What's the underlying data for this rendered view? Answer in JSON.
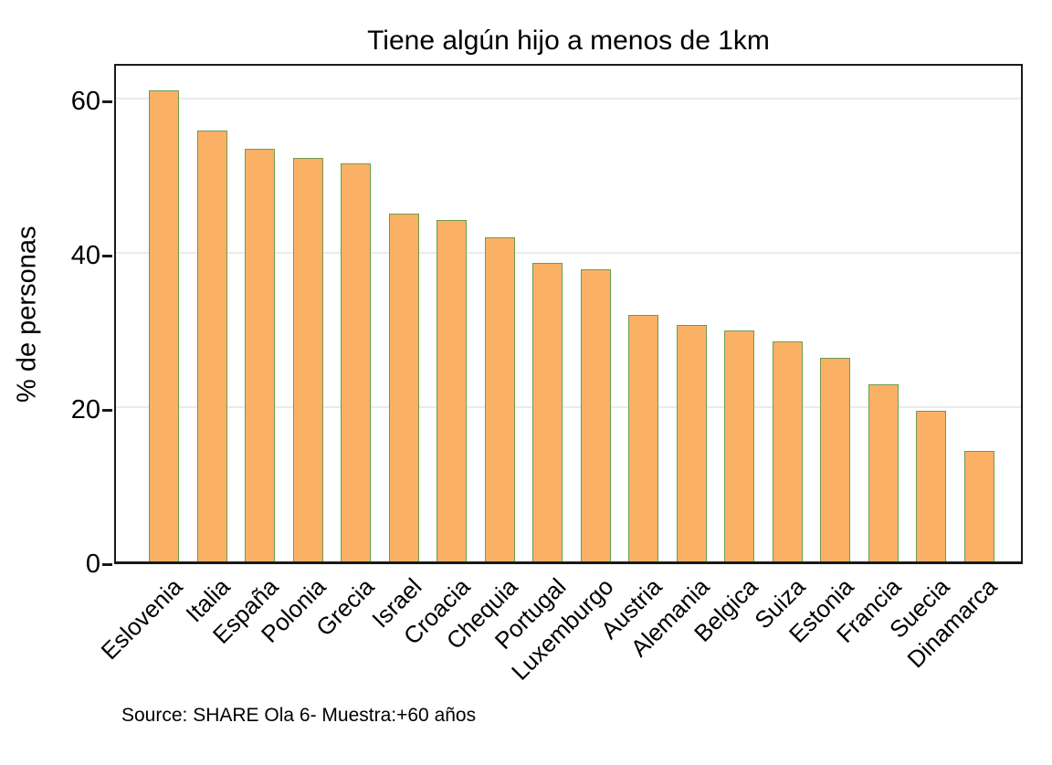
{
  "chart_data": {
    "type": "bar",
    "title": "Tiene algún hijo a menos de 1km",
    "ylabel": "% de personas",
    "xlabel": "",
    "source": "Source: SHARE Ola 6- Muestra:+60 años",
    "categories": [
      "Eslovenia",
      "Italia",
      "España",
      "Polonia",
      "Grecia",
      "Israel",
      "Croacia",
      "Chequia",
      "Portugal",
      "Luxemburgo",
      "Austria",
      "Alemania",
      "Belgica",
      "Suiza",
      "Estonia",
      "Francia",
      "Suecia",
      "Dinamarca"
    ],
    "values": [
      61.1,
      55.9,
      53.5,
      52.4,
      51.6,
      45.1,
      44.3,
      42.0,
      38.7,
      37.9,
      32.0,
      30.7,
      30.0,
      28.6,
      26.4,
      23.0,
      19.5,
      14.3
    ],
    "yticks": [
      0,
      20,
      40,
      60
    ],
    "ylim": [
      0,
      64.9
    ],
    "grid": true,
    "legend": false,
    "colors": {
      "bar_fill": "#fbb165",
      "bar_border": "#6f9a4f",
      "gridline": "#ebebeb",
      "axis": "#1a1a1a",
      "background": "#ffffff",
      "text": "#000000"
    }
  }
}
